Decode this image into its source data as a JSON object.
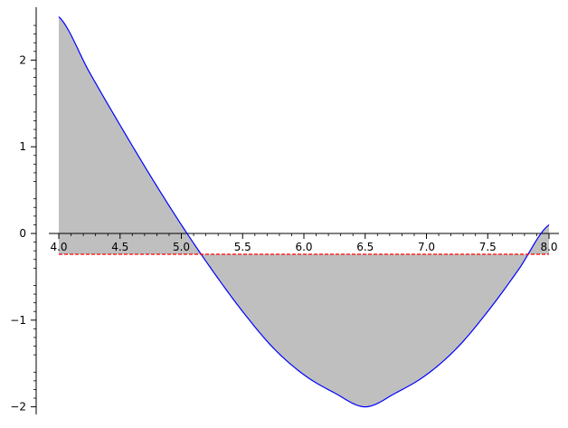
{
  "chart_data": {
    "type": "area",
    "title": "",
    "xlabel": "",
    "ylabel": "",
    "xlim": [
      3.93,
      8.08
    ],
    "ylim": [
      -2.09,
      2.58
    ],
    "x_ticks": [
      4.0,
      4.5,
      5.0,
      5.5,
      6.0,
      6.5,
      7.0,
      7.5,
      8.0
    ],
    "x_tick_labels": [
      "4.0",
      "4.5",
      "5.0",
      "5.5",
      "6.0",
      "6.5",
      "7.0",
      "7.5",
      "8.0"
    ],
    "y_ticks": [
      -2,
      -1,
      0,
      1,
      2
    ],
    "y_tick_labels": [
      "−2",
      "−1",
      "0",
      "1",
      "2"
    ],
    "grid": false,
    "axes_style": "axes through origin (x-axis drawn at y=0)",
    "series": [
      {
        "kind": "curve",
        "color": "#0000ff",
        "x": [
          4.0,
          4.25,
          4.5,
          4.75,
          5.0,
          5.25,
          5.5,
          5.75,
          6.0,
          6.25,
          6.5,
          6.75,
          7.0,
          7.25,
          7.5,
          7.75,
          8.0
        ],
        "y": [
          2.5,
          1.86,
          1.25,
          0.66,
          0.1,
          -0.42,
          -0.9,
          -1.32,
          -1.63,
          -1.84,
          -2.0,
          -1.84,
          -1.63,
          -1.32,
          -0.9,
          -0.42,
          0.1
        ]
      },
      {
        "kind": "fill_between_curve_and_line",
        "fill_color": "#bfbfbf",
        "baseline_y": -0.24
      },
      {
        "kind": "hline",
        "style": "dashed",
        "color": "#ff0000",
        "y": -0.24,
        "x_range": [
          4.0,
          8.0
        ]
      }
    ]
  }
}
